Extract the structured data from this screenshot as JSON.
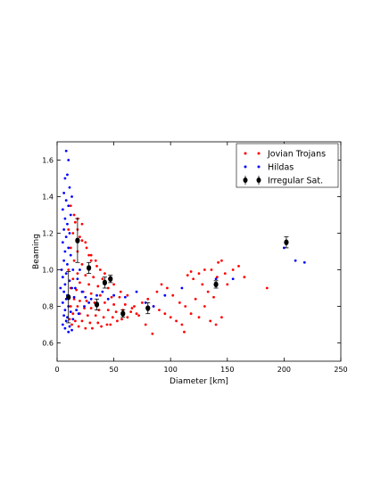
{
  "chart_data": {
    "type": "scatter",
    "xlabel": "Diameter [km]",
    "ylabel": "Beaming",
    "xlim": [
      0,
      250
    ],
    "ylim": [
      0.5,
      1.7
    ],
    "xticks": [
      0,
      50,
      100,
      150,
      200,
      250
    ],
    "yticks": [
      0.6,
      0.8,
      1.0,
      1.2,
      1.4,
      1.6
    ],
    "xtick_labels": [
      "0",
      "50",
      "100",
      "150",
      "200",
      "250"
    ],
    "ytick_labels": [
      "0.6",
      "0.8",
      "1.0",
      "1.2",
      "1.4",
      "1.6"
    ],
    "grid": false,
    "legend_position": "upper right",
    "legend": [
      {
        "label": "Jovian Trojans",
        "color": "#ff0000",
        "marker": "dot"
      },
      {
        "label": "Hildas",
        "color": "#0000ff",
        "marker": "dot"
      },
      {
        "label": "Irregular Sat.",
        "color": "#000000",
        "marker": "errorbar"
      }
    ],
    "series": [
      {
        "name": "Jovian Trojans",
        "color": "#ff0000",
        "points": [
          [
            12,
            1.35
          ],
          [
            15,
            1.3
          ],
          [
            18,
            1.28
          ],
          [
            22,
            1.25
          ],
          [
            10,
            1.22
          ],
          [
            14,
            1.2
          ],
          [
            20,
            1.18
          ],
          [
            25,
            1.15
          ],
          [
            12,
            1.12
          ],
          [
            18,
            1.1
          ],
          [
            28,
            1.08
          ],
          [
            30,
            1.05
          ],
          [
            15,
            1.05
          ],
          [
            22,
            1.03
          ],
          [
            35,
            1.02
          ],
          [
            10,
            1.0
          ],
          [
            18,
            0.98
          ],
          [
            25,
            0.97
          ],
          [
            32,
            0.96
          ],
          [
            40,
            0.95
          ],
          [
            14,
            0.95
          ],
          [
            20,
            0.93
          ],
          [
            28,
            0.92
          ],
          [
            36,
            0.91
          ],
          [
            45,
            0.9
          ],
          [
            12,
            0.9
          ],
          [
            17,
            0.89
          ],
          [
            23,
            0.88
          ],
          [
            30,
            0.87
          ],
          [
            38,
            0.86
          ],
          [
            48,
            0.85
          ],
          [
            55,
            0.85
          ],
          [
            10,
            0.85
          ],
          [
            15,
            0.84
          ],
          [
            20,
            0.83
          ],
          [
            26,
            0.83
          ],
          [
            33,
            0.82
          ],
          [
            42,
            0.82
          ],
          [
            50,
            0.81
          ],
          [
            60,
            0.81
          ],
          [
            12,
            0.8
          ],
          [
            18,
            0.8
          ],
          [
            24,
            0.79
          ],
          [
            30,
            0.79
          ],
          [
            37,
            0.78
          ],
          [
            45,
            0.78
          ],
          [
            52,
            0.77
          ],
          [
            65,
            0.77
          ],
          [
            14,
            0.76
          ],
          [
            20,
            0.76
          ],
          [
            27,
            0.75
          ],
          [
            34,
            0.75
          ],
          [
            41,
            0.74
          ],
          [
            49,
            0.74
          ],
          [
            57,
            0.73
          ],
          [
            70,
            0.76
          ],
          [
            11,
            0.73
          ],
          [
            16,
            0.72
          ],
          [
            22,
            0.72
          ],
          [
            29,
            0.71
          ],
          [
            36,
            0.71
          ],
          [
            44,
            0.7
          ],
          [
            53,
            0.72
          ],
          [
            62,
            0.74
          ],
          [
            13,
            0.7
          ],
          [
            19,
            0.69
          ],
          [
            25,
            0.68
          ],
          [
            31,
            0.68
          ],
          [
            39,
            0.69
          ],
          [
            47,
            0.7
          ],
          [
            58,
            0.78
          ],
          [
            68,
            0.8
          ],
          [
            75,
            0.82
          ],
          [
            80,
            0.84
          ],
          [
            85,
            0.8
          ],
          [
            90,
            0.78
          ],
          [
            95,
            0.76
          ],
          [
            100,
            0.74
          ],
          [
            105,
            0.72
          ],
          [
            110,
            0.7
          ],
          [
            88,
            0.88
          ],
          [
            92,
            0.92
          ],
          [
            97,
            0.9
          ],
          [
            102,
            0.86
          ],
          [
            108,
            0.82
          ],
          [
            113,
            0.8
          ],
          [
            118,
            0.76
          ],
          [
            125,
            0.74
          ],
          [
            120,
            0.95
          ],
          [
            128,
            0.92
          ],
          [
            133,
            0.88
          ],
          [
            138,
            0.85
          ],
          [
            141,
            0.96
          ],
          [
            145,
            1.05
          ],
          [
            142,
            1.04
          ],
          [
            136,
            1.0
          ],
          [
            115,
            0.97
          ],
          [
            118,
            0.99
          ],
          [
            130,
            1.0
          ],
          [
            125,
            0.98
          ],
          [
            148,
            0.98
          ],
          [
            150,
            0.92
          ],
          [
            155,
            1.0
          ],
          [
            160,
            1.02
          ],
          [
            165,
            0.96
          ],
          [
            185,
            0.9
          ],
          [
            145,
            0.74
          ],
          [
            140,
            0.7
          ],
          [
            135,
            0.72
          ],
          [
            130,
            0.8
          ],
          [
            122,
            0.84
          ],
          [
            112,
            0.66
          ],
          [
            84,
            0.65
          ],
          [
            78,
            0.7
          ],
          [
            72,
            0.75
          ],
          [
            66,
            0.79
          ],
          [
            62,
            0.86
          ],
          [
            56,
            0.88
          ],
          [
            50,
            0.92
          ],
          [
            46,
            0.95
          ],
          [
            42,
            0.98
          ],
          [
            38,
            1.0
          ],
          [
            34,
            1.05
          ],
          [
            30,
            1.08
          ],
          [
            26,
            1.12
          ],
          [
            22,
            1.16
          ],
          [
            18,
            1.22
          ],
          [
            16,
            1.26
          ]
        ]
      },
      {
        "name": "Hildas",
        "color": "#0000ff",
        "points": [
          [
            8,
            1.65
          ],
          [
            10,
            1.6
          ],
          [
            9,
            1.52
          ],
          [
            7,
            1.5
          ],
          [
            11,
            1.45
          ],
          [
            6,
            1.42
          ],
          [
            13,
            1.4
          ],
          [
            8,
            1.38
          ],
          [
            10,
            1.35
          ],
          [
            5,
            1.33
          ],
          [
            12,
            1.3
          ],
          [
            7,
            1.28
          ],
          [
            9,
            1.25
          ],
          [
            6,
            1.22
          ],
          [
            11,
            1.2
          ],
          [
            8,
            1.18
          ],
          [
            5,
            1.15
          ],
          [
            10,
            1.12
          ],
          [
            7,
            1.1
          ],
          [
            12,
            1.08
          ],
          [
            6,
            1.05
          ],
          [
            9,
            1.03
          ],
          [
            14,
            1.0
          ],
          [
            8,
            0.98
          ],
          [
            5,
            0.96
          ],
          [
            11,
            0.94
          ],
          [
            7,
            0.92
          ],
          [
            13,
            0.9
          ],
          [
            6,
            0.88
          ],
          [
            9,
            0.86
          ],
          [
            15,
            0.85
          ],
          [
            8,
            0.84
          ],
          [
            5,
            0.82
          ],
          [
            10,
            0.8
          ],
          [
            7,
            0.78
          ],
          [
            12,
            0.77
          ],
          [
            6,
            0.75
          ],
          [
            9,
            0.74
          ],
          [
            14,
            0.73
          ],
          [
            8,
            0.72
          ],
          [
            5,
            0.7
          ],
          [
            11,
            0.69
          ],
          [
            7,
            0.68
          ],
          [
            13,
            0.67
          ],
          [
            10,
            0.66
          ],
          [
            16,
            0.9
          ],
          [
            18,
            0.95
          ],
          [
            20,
            1.0
          ],
          [
            22,
            0.88
          ],
          [
            25,
            0.85
          ],
          [
            28,
            0.82
          ],
          [
            17,
            0.78
          ],
          [
            19,
            0.76
          ],
          [
            24,
            0.8
          ],
          [
            30,
            0.84
          ],
          [
            35,
            0.86
          ],
          [
            40,
            0.88
          ],
          [
            45,
            0.84
          ],
          [
            50,
            0.86
          ],
          [
            60,
            0.85
          ],
          [
            70,
            0.88
          ],
          [
            78,
            0.82
          ],
          [
            85,
            0.8
          ],
          [
            95,
            0.86
          ],
          [
            110,
            0.9
          ],
          [
            140,
            0.95
          ],
          [
            155,
            0.95
          ],
          [
            200,
            1.12
          ],
          [
            210,
            1.05
          ],
          [
            218,
            1.04
          ],
          [
            4,
            1.0
          ],
          [
            3,
            0.9
          ]
        ]
      },
      {
        "name": "Irregular Sat.",
        "color": "#000000",
        "points": [
          {
            "x": 10,
            "y": 0.85,
            "err": 0.14
          },
          {
            "x": 18,
            "y": 1.16,
            "err": 0.12
          },
          {
            "x": 28,
            "y": 1.01,
            "err": 0.03
          },
          {
            "x": 35,
            "y": 0.81,
            "err": 0.03
          },
          {
            "x": 42,
            "y": 0.93,
            "err": 0.03
          },
          {
            "x": 47,
            "y": 0.95,
            "err": 0.02
          },
          {
            "x": 58,
            "y": 0.76,
            "err": 0.02
          },
          {
            "x": 80,
            "y": 0.79,
            "err": 0.03
          },
          {
            "x": 140,
            "y": 0.92,
            "err": 0.02
          },
          {
            "x": 202,
            "y": 1.15,
            "err": 0.03
          }
        ]
      }
    ]
  }
}
